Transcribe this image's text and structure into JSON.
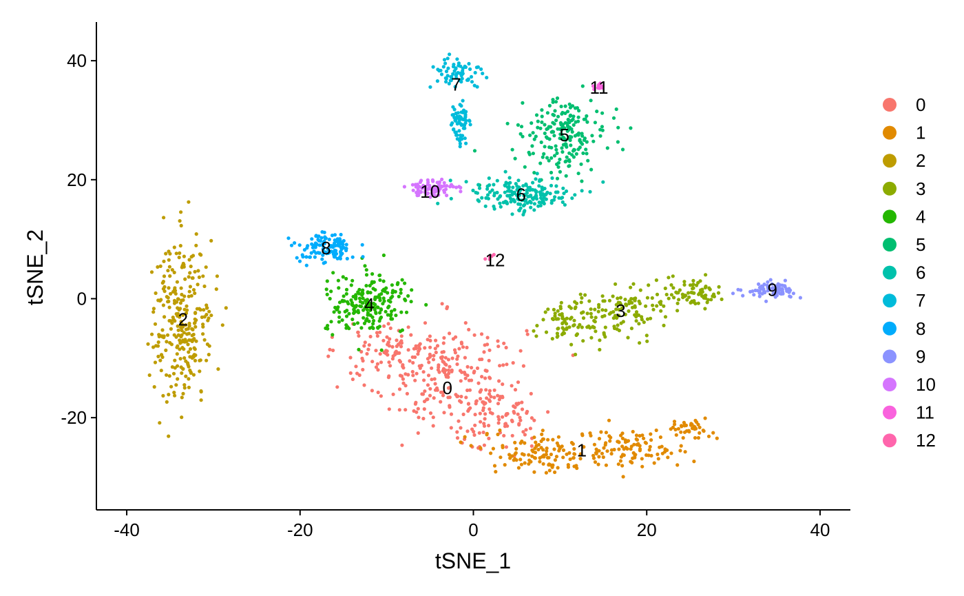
{
  "chart_data": {
    "type": "scatter",
    "title": "",
    "xlabel": "tSNE_1",
    "ylabel": "tSNE_2",
    "xlim": [
      -43.5,
      43.5
    ],
    "ylim": [
      -35.5,
      46.5
    ],
    "xticks": [
      -40,
      -20,
      0,
      20,
      40
    ],
    "xtick_labels": [
      "-40",
      "-20",
      "0",
      "20",
      "40"
    ],
    "yticks": [
      -20,
      0,
      20,
      40
    ],
    "ytick_labels": [
      "-20",
      "0",
      "20",
      "40"
    ],
    "grid": false,
    "legend_position": "right",
    "series": [
      {
        "name": "0",
        "color": "#F8766D",
        "center": [
          -3,
          -15
        ],
        "size": 400,
        "blobs": [
          [
            -3,
            -13,
            9,
            9,
            0.6
          ],
          [
            -9,
            -8,
            6,
            4,
            0.2
          ],
          [
            3,
            -20,
            6,
            6,
            0.2
          ]
        ]
      },
      {
        "name": "1",
        "color": "#E18A00",
        "center": [
          12.5,
          -25.5
        ],
        "size": 260,
        "blobs": [
          [
            8,
            -26,
            7,
            3.5,
            0.45
          ],
          [
            18,
            -25,
            7,
            3,
            0.4
          ],
          [
            25,
            -22,
            2.5,
            1.5,
            0.15
          ]
        ]
      },
      {
        "name": "2",
        "color": "#BE9C00",
        "center": [
          -33.5,
          -3.5
        ],
        "size": 280,
        "blobs": [
          [
            -33.5,
            -3.5,
            3.5,
            14,
            1.0
          ]
        ]
      },
      {
        "name": "3",
        "color": "#8CAB00",
        "center": [
          17,
          -2
        ],
        "size": 260,
        "blobs": [
          [
            11,
            -4,
            4,
            4,
            0.35
          ],
          [
            18,
            -2,
            4,
            4,
            0.35
          ],
          [
            25,
            1,
            3.5,
            2.5,
            0.3
          ]
        ]
      },
      {
        "name": "4",
        "color": "#24B700",
        "center": [
          -12,
          -1
        ],
        "size": 200,
        "blobs": [
          [
            -12,
            -1,
            5,
            5,
            1.0
          ]
        ]
      },
      {
        "name": "5",
        "color": "#00BE70",
        "center": [
          10.5,
          27.5
        ],
        "size": 200,
        "blobs": [
          [
            10.5,
            27.5,
            5,
            6,
            1.0
          ]
        ]
      },
      {
        "name": "6",
        "color": "#00C1AB",
        "center": [
          5.5,
          17.5
        ],
        "size": 180,
        "blobs": [
          [
            5.5,
            17.5,
            6,
            3,
            1.0
          ]
        ]
      },
      {
        "name": "7",
        "color": "#00BBDA",
        "center": [
          -2,
          36
        ],
        "size": 130,
        "blobs": [
          [
            -2,
            38,
            3,
            3,
            0.5
          ],
          [
            -1.5,
            29,
            1.3,
            4,
            0.5
          ]
        ]
      },
      {
        "name": "8",
        "color": "#00ACFC",
        "center": [
          -17,
          8.5
        ],
        "size": 120,
        "blobs": [
          [
            -17,
            8.5,
            3.2,
            2.5,
            1.0
          ]
        ]
      },
      {
        "name": "9",
        "color": "#8B93FF",
        "center": [
          34.5,
          1.5
        ],
        "size": 80,
        "blobs": [
          [
            34.5,
            1.5,
            3,
            1.2,
            1.0
          ]
        ]
      },
      {
        "name": "10",
        "color": "#D575FE",
        "center": [
          -5,
          18
        ],
        "size": 80,
        "blobs": [
          [
            -5,
            18.5,
            3,
            1.5,
            1.0
          ]
        ]
      },
      {
        "name": "11",
        "color": "#F962DD",
        "center": [
          14.5,
          35.5
        ],
        "size": 14,
        "blobs": [
          [
            14.5,
            35.5,
            0.6,
            0.5,
            1.0
          ]
        ]
      },
      {
        "name": "12",
        "color": "#FF65AC",
        "center": [
          2.5,
          6.5
        ],
        "size": 5,
        "blobs": [
          [
            2,
            7,
            0.5,
            0.5,
            1.0
          ]
        ]
      }
    ]
  },
  "legend": {
    "items": [
      "0",
      "1",
      "2",
      "3",
      "4",
      "5",
      "6",
      "7",
      "8",
      "9",
      "10",
      "11",
      "12"
    ]
  }
}
